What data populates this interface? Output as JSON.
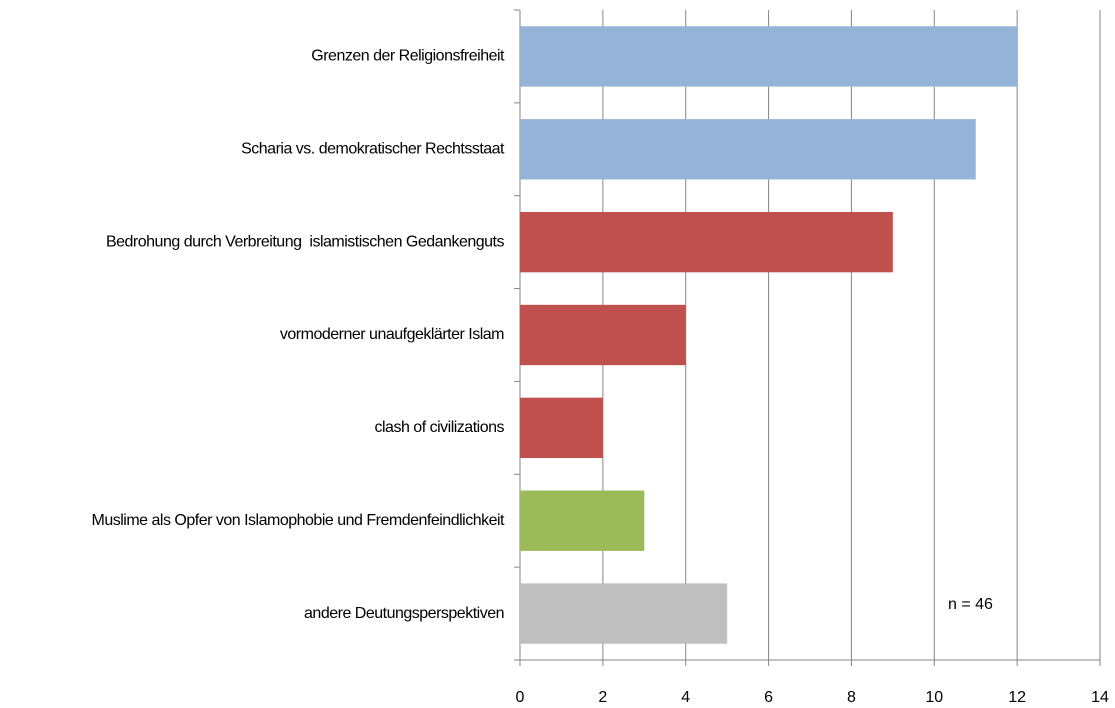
{
  "chart_data": {
    "type": "bar",
    "orientation": "horizontal",
    "categories": [
      "Grenzen der Religionsfreiheit",
      "Scharia vs. demokratischer Rechtsstaat",
      "Bedrohung durch Verbreitung  islamistischen Gedankenguts",
      "vormoderner unaufgeklärter Islam",
      "clash of civilizations",
      "Muslime als Opfer von Islamophobie und Fremdenfeindlichkeit",
      "andere Deutungsperspektiven"
    ],
    "values": [
      12,
      11,
      9,
      4,
      2,
      3,
      5
    ],
    "colors": [
      "#95b3d7",
      "#95b3d7",
      "#c0504d",
      "#c0504d",
      "#c0504d",
      "#9bbb59",
      "#bfbfbf"
    ],
    "xlim": [
      0,
      14
    ],
    "xticks": [
      0,
      2,
      4,
      6,
      8,
      10,
      12,
      14
    ],
    "grid": true,
    "annotation": "n = 46"
  }
}
